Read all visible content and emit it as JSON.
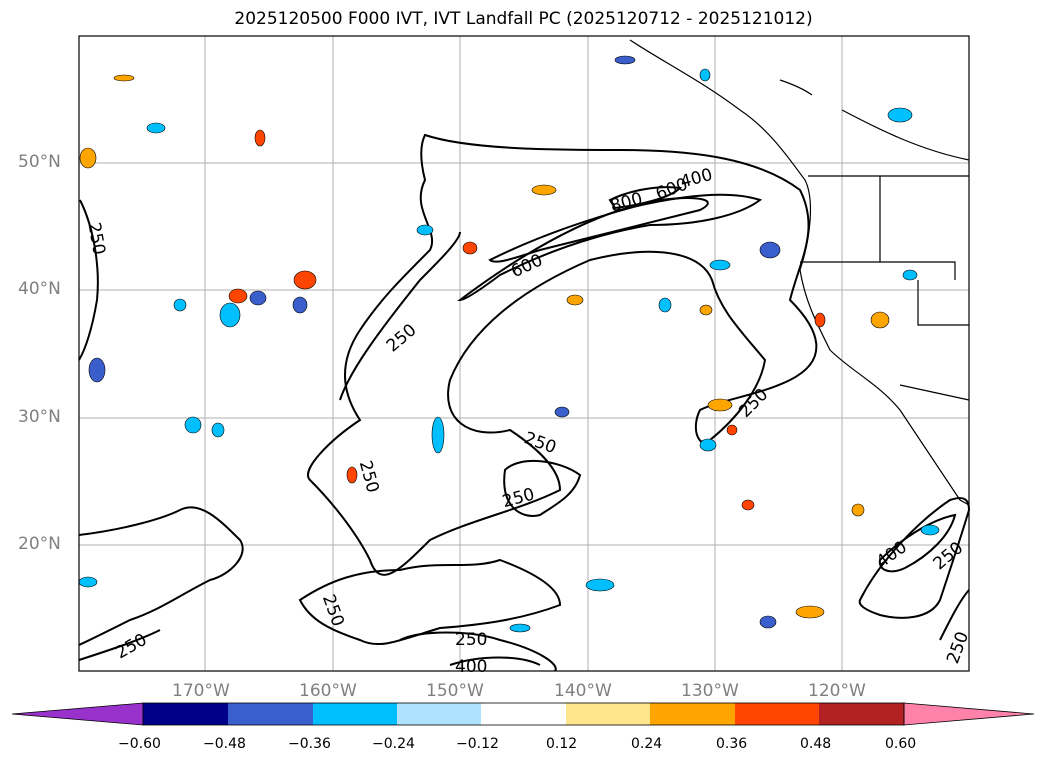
{
  "title": "2025120500 F000 IVT, IVT Landfall PC (2025120712 - 2025121012)",
  "lat_labels": [
    "50°N",
    "40°N",
    "30°N",
    "20°N"
  ],
  "lon_labels": [
    "170°W",
    "160°W",
    "150°W",
    "140°W",
    "130°W",
    "120°W"
  ],
  "contour_labels": [
    "250",
    "250",
    "250",
    "250",
    "250",
    "250",
    "250",
    "250",
    "250",
    "250",
    "250",
    "400",
    "400",
    "400",
    "600",
    "600",
    "800"
  ],
  "colorbar": {
    "ticks": [
      "−0.60",
      "−0.48",
      "−0.36",
      "−0.24",
      "−0.12",
      "0.12",
      "0.24",
      "0.36",
      "0.48",
      "0.60"
    ],
    "colors": [
      "#9932cc",
      "#00008b",
      "#3a5fcd",
      "#00bfff",
      "#b0e2ff",
      "#ffffff",
      "#ffe68c",
      "#ffa500",
      "#ff4500",
      "#b22222",
      "#ff82ab"
    ]
  },
  "colors": {
    "contour": "#000000",
    "grid": "#b0b0b0",
    "coast": "#000000",
    "label": "#808080"
  }
}
